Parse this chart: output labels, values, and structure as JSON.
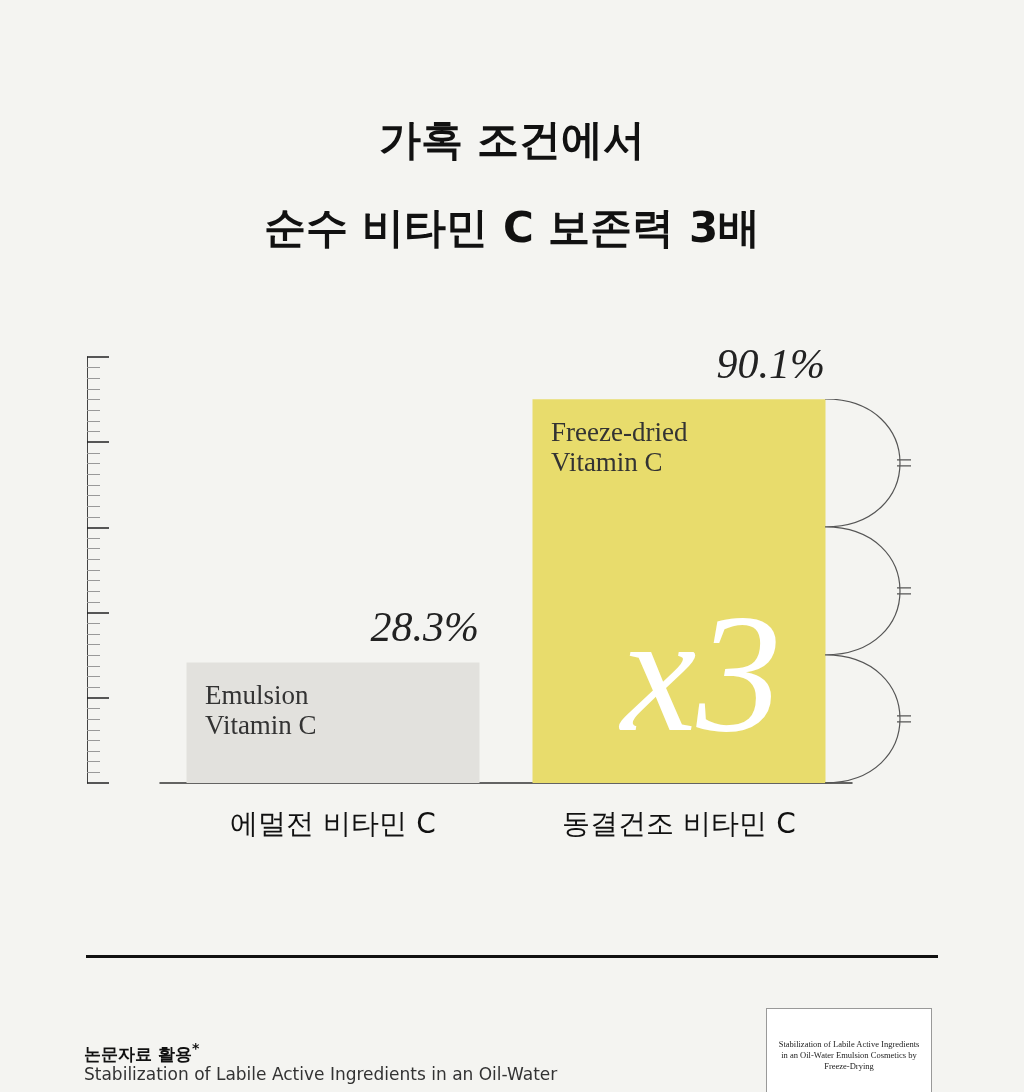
{
  "chart_data": {
    "type": "bar",
    "title": "가혹 조건에서\n순수 비타민 C 보존력 3배",
    "categories": [
      "에멀전 비타민 C",
      "동결건조 비타민 C"
    ],
    "values": [
      28.3,
      90.1
    ],
    "colors": [
      "#e2e1dd",
      "#e8dc6c"
    ],
    "value_labels": [
      "28.3%",
      "90.1%"
    ],
    "tick_labels": "x",
    "grid": false,
    "annotations": [
      {
        "text": "Emulsion\nVitamin C",
        "x": "에멀전 비타민 C",
        "y": 28.3
      },
      {
        "text": "Freeze-dried\nVitamin C",
        "x": "동결건조 비타민 C",
        "y": 90.1
      },
      "x3",
      "논문자료 활용$^{*}$",
      "Stabilization of Labile Active Ingredients in an Oil-Water",
      "Stabilization of Labile Active Ingredients in an Oil-Water Emulsion Cosmetics by Freeze-Drying"
    ]
  }
}
